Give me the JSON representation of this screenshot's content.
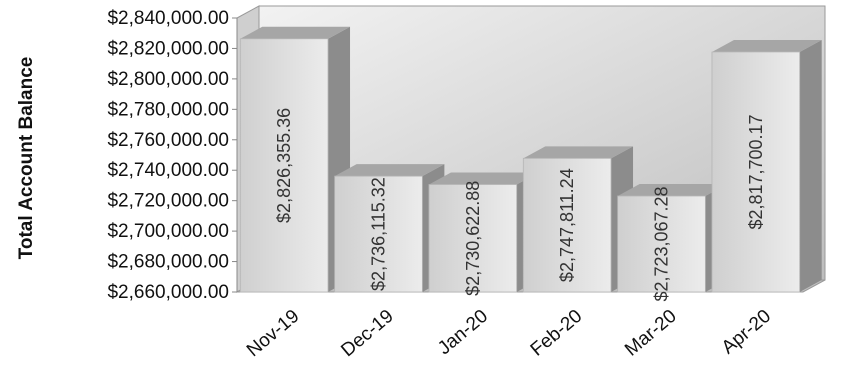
{
  "chart_data": {
    "type": "bar",
    "title": "",
    "xlabel": "",
    "ylabel": "Total Account Balance",
    "categories": [
      "Nov-19",
      "Dec-19",
      "Jan-20",
      "Feb-20",
      "Mar-20",
      "Apr-20"
    ],
    "values": [
      2826355.36,
      2736115.32,
      2730622.88,
      2747811.24,
      2723067.28,
      2817700.17
    ],
    "value_labels": [
      "$2,826,355.36",
      "$2,736,115.32",
      "$2,730,622.88",
      "$2,747,811.24",
      "$2,723,067.28",
      "$2,817,700.17"
    ],
    "ylim": [
      2660000,
      2840000
    ],
    "yticks": [
      2660000,
      2680000,
      2700000,
      2720000,
      2740000,
      2760000,
      2780000,
      2800000,
      2820000,
      2840000
    ],
    "ytick_labels": [
      "$2,660,000.00",
      "$2,680,000.00",
      "$2,700,000.00",
      "$2,720,000.00",
      "$2,740,000.00",
      "$2,760,000.00",
      "$2,780,000.00",
      "$2,800,000.00",
      "$2,820,000.00",
      "$2,840,000.00"
    ],
    "grid": false,
    "legend": "none",
    "style": "3d",
    "colors": {
      "bar_front": "#d9d9d9",
      "bar_side": "#8c8c8c",
      "bar_top": "#a6a6a6",
      "wall": "#d4d4d4",
      "floor": "#bfbfbf"
    }
  }
}
